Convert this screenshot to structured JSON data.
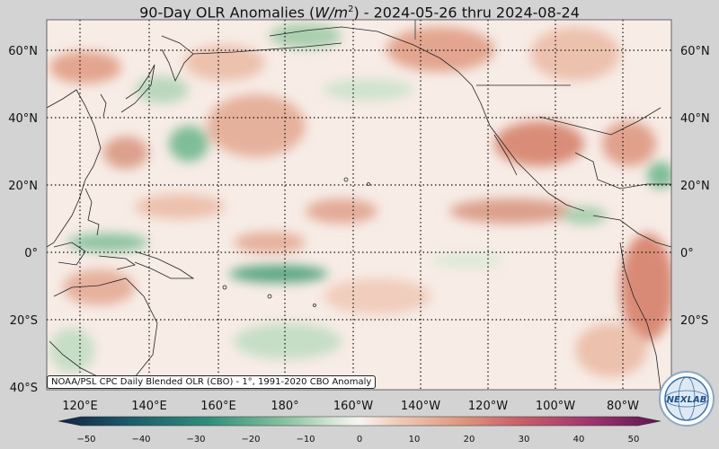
{
  "title": {
    "prefix": "90-Day OLR Anomalies (",
    "unit_main": "W/m",
    "unit_exp": "2",
    "suffix": ") - 2024-05-26 thru 2024-08-24"
  },
  "map": {
    "lat_labels": [
      "60°N",
      "40°N",
      "20°N",
      "0°",
      "20°S",
      "40°S"
    ],
    "lon_labels": [
      "120°E",
      "140°E",
      "160°E",
      "180°",
      "160°W",
      "140°W",
      "120°W",
      "100°W",
      "80°W"
    ],
    "source_note": "NOAA/PSL CPC Daily Blended OLR (CBO) - 1°, 1991-2020 CBO Anomaly",
    "colors": {
      "negative_deep": "#1e3a5f",
      "negative_mid": "#3b9c78",
      "negative_light": "#a9cfae",
      "neutral": "#f7efea",
      "positive_light": "#ecc3ad",
      "positive_mid": "#d07a66",
      "positive_deep": "#7a1c5a",
      "land_outline": "#222222",
      "grid": "#111111"
    }
  },
  "colorbar": {
    "ticks": [
      "−50",
      "−40",
      "−30",
      "−20",
      "−10",
      "0",
      "10",
      "20",
      "30",
      "40",
      "50"
    ]
  },
  "logo": {
    "text": "NEXLAB",
    "icon": "globe-logo-icon"
  }
}
